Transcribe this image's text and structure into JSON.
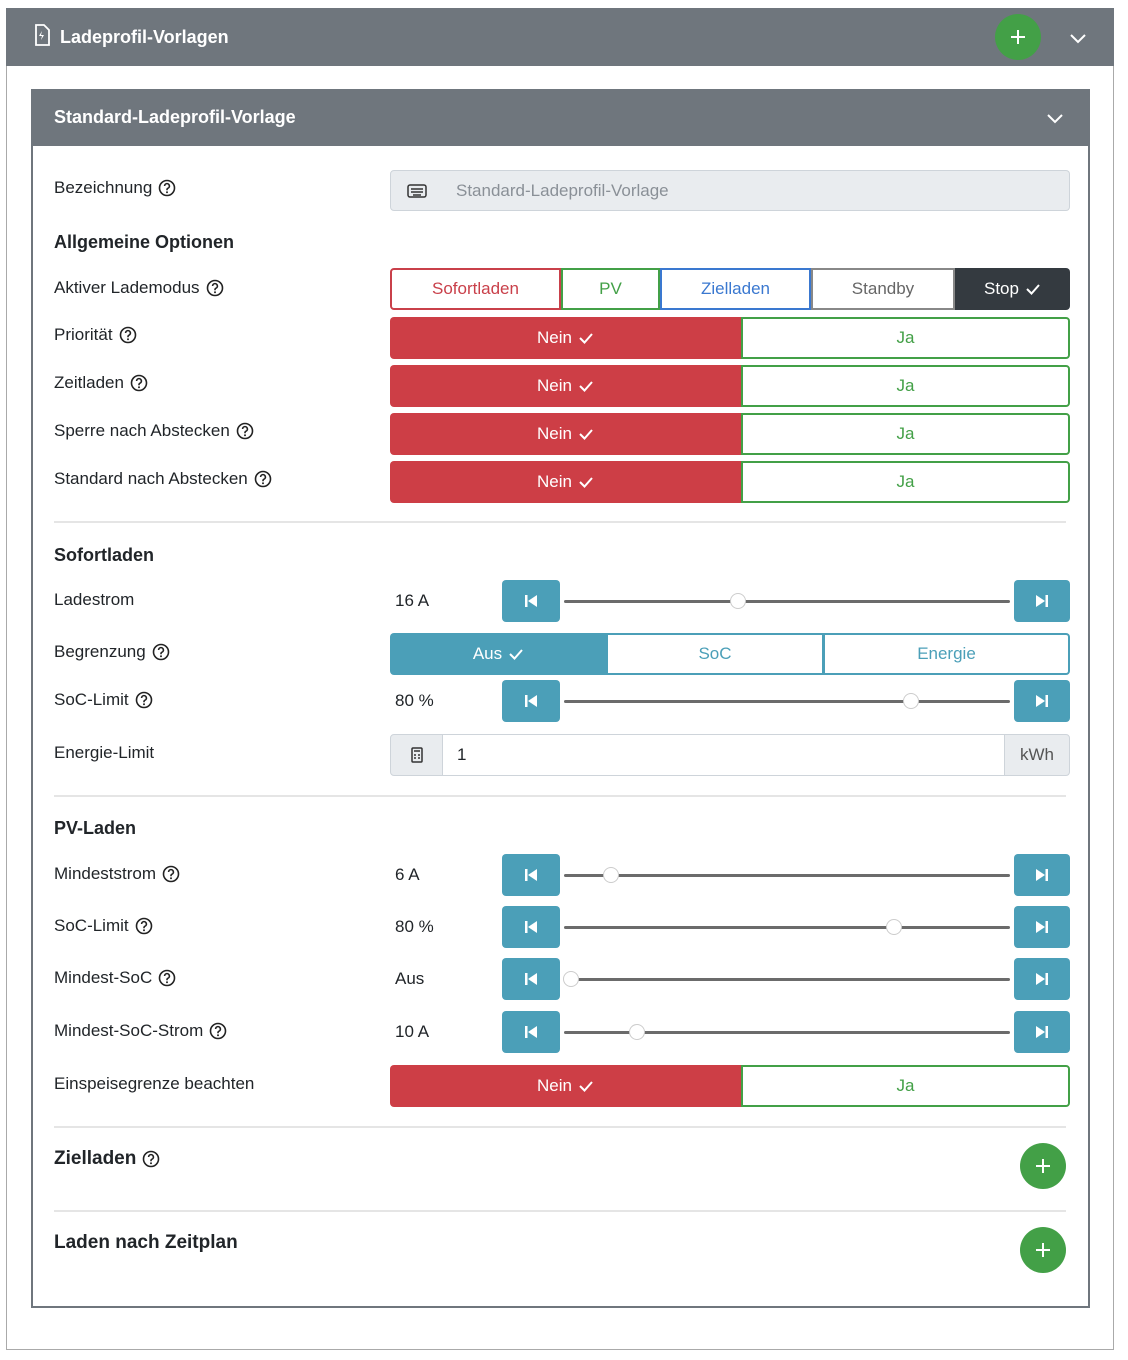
{
  "header": {
    "title": "Ladeprofil-Vorlagen"
  },
  "template": {
    "title": "Standard-Ladeprofil-Vorlage",
    "name": {
      "label": "Bezeichnung",
      "value": "Standard-Ladeprofil-Vorlage"
    },
    "general": {
      "heading": "Allgemeine Optionen",
      "charge_mode": {
        "label": "Aktiver Lademodus",
        "options": [
          "Sofortladen",
          "PV",
          "Zielladen",
          "Standby",
          "Stop"
        ]
      },
      "switches": [
        {
          "label": "Priorität",
          "off": "Nein",
          "on": "Ja"
        },
        {
          "label": "Zeitladen",
          "off": "Nein",
          "on": "Ja"
        },
        {
          "label": "Sperre nach Abstecken",
          "off": "Nein",
          "on": "Ja"
        },
        {
          "label": "Standard nach Abstecken",
          "off": "Nein",
          "on": "Ja"
        }
      ]
    },
    "instant": {
      "heading": "Sofortladen",
      "current": {
        "label": "Ladestrom",
        "value": "16 A"
      },
      "limit": {
        "label": "Begrenzung",
        "options": [
          "Aus",
          "SoC",
          "Energie"
        ]
      },
      "soc_limit": {
        "label": "SoC-Limit",
        "value": "80 %"
      },
      "energy_limit": {
        "label": "Energie-Limit",
        "value": "1",
        "unit": "kWh"
      }
    },
    "pv": {
      "heading": "PV-Laden",
      "sliders": [
        {
          "label": "Mindeststrom",
          "value": "6 A"
        },
        {
          "label": "SoC-Limit",
          "value": "80 %"
        },
        {
          "label": "Mindest-SoC",
          "value": "Aus"
        },
        {
          "label": "Mindest-SoC-Strom",
          "value": "10 A"
        }
      ],
      "feed_in": {
        "label": "Einspeisegrenze beachten",
        "off": "Nein",
        "on": "Ja"
      }
    },
    "scheduled": {
      "heading": "Zielladen"
    },
    "timetable": {
      "heading": "Laden nach Zeitplan"
    }
  }
}
